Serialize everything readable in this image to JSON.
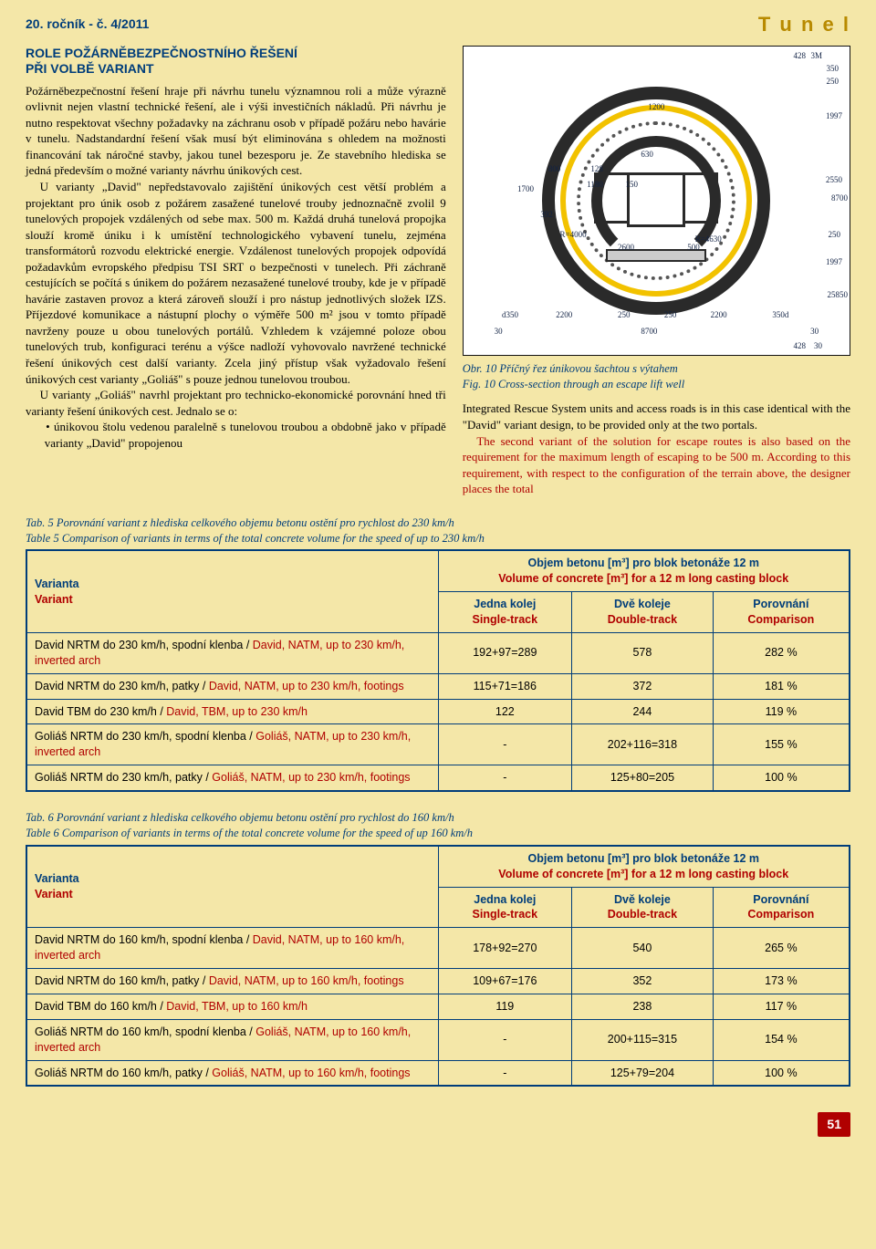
{
  "header": {
    "issue": "20. ročník - č. 4/2011",
    "logo": "T u n e l"
  },
  "article": {
    "title_line1": "ROLE POŽÁRNĚBEZPEČNOSTNÍHO ŘEŠENÍ",
    "title_line2": "PŘI VOLBĚ VARIANT",
    "p1": "Požárněbezpečnostní řešení hraje při návrhu tunelu významnou roli a může výrazně ovlivnit nejen vlastní technické řešení, ale i výši investičních nákladů. Při návrhu je nutno respektovat všechny požadavky na záchranu osob v případě požáru nebo havárie v tunelu. Nadstandardní řešení však musí být eliminována s ohledem na možnosti financování tak náročné stavby, jakou tunel bezesporu je. Ze stavebního hlediska se jedná především o možné varianty návrhu únikových cest.",
    "p2": "U varianty „David\" nepředstavovalo zajištění únikových cest větší problém a projektant pro únik osob z požárem zasažené tunelové trouby jednoznačně zvolil 9 tunelových propojek vzdálených od sebe max. 500 m. Každá druhá tunelová propojka slouží kromě úniku i k umístění technologického vybavení tunelu, zejména transformátorů rozvodu elektrické energie. Vzdálenost tunelových propojek odpovídá požadavkům evropského předpisu TSI SRT o bezpečnosti v tunelech. Při záchraně cestujících se počítá s únikem do požárem nezasažené tunelové trouby, kde je v případě havárie zastaven provoz a která zároveň slouží i pro nástup jednotlivých složek IZS. Příjezdové komunikace a nástupní plochy o výměře 500 m² jsou v tomto případě navrženy pouze u obou tunelových portálů. Vzhledem k vzájemné poloze obou tunelových trub, konfiguraci terénu a výšce nadloží vyhovovalo navržené technické řešení únikových cest další varianty. Zcela jiný přístup však vyžadovalo řešení únikových cest varianty „Goliáš\" s pouze jednou tunelovou troubou.",
    "p3": "U varianty „Goliáš\" navrhl projektant pro technicko-ekonomické porovnání hned tři varianty řešení únikových cest. Jednalo se o:",
    "b1": "únikovou štolu vedenou paralelně s tunelovou troubou a obdobně jako v případě varianty „David\" propojenou"
  },
  "figure": {
    "caption_cs": "Obr. 10 Příčný řez únikovou šachtou s výtahem",
    "caption_en": "Fig. 10 Cross-section through an escape lift well",
    "dims": {
      "d1": "428",
      "d2": "3M",
      "d3": "350",
      "d4": "250",
      "d5": "1997",
      "d6": "1200",
      "d7": "630",
      "d8": "800",
      "d9": "128",
      "d10": "1700",
      "d11": "1180",
      "d12": "150",
      "d13": "392",
      "d14": "2600",
      "d15": "500",
      "d16": "2550",
      "d17": "8700",
      "d18": "250",
      "d19": "1997",
      "d20": "d350",
      "d21": "2200",
      "d22": "250",
      "d23": "250",
      "d24": "2200",
      "d25": "350d",
      "d26": "30",
      "d27": "8700",
      "d28": "30",
      "d29": "R=4630",
      "d30": "R=4000",
      "d31": "25850",
      "d32": "30",
      "d33": "428"
    }
  },
  "right_text": {
    "p1a": "Integrated Rescue System units and access roads is in this case identical with the \"David\" variant design, to be provided only at the two portals.",
    "p2a": "The second variant of the solution for escape routes is also based on the requirement for the maximum length of escaping to be 500 m. According to this requirement, with respect to the configuration of the terrain above, the designer places the total"
  },
  "table5": {
    "caption_cs": "Tab. 5 Porovnání variant z hlediska celkového objemu betonu ostění pro rychlost do 230 km/h",
    "caption_en": "Table 5 Comparison of variants in terms of the total concrete volume for the speed of up to 230 km/h",
    "col_var_cs": "Varianta",
    "col_var_en": "Variant",
    "col_vol_cs": "Objem betonu [m³] pro blok betonáže 12 m",
    "col_vol_en": "Volume of concrete [m³] for a 12 m long casting block",
    "sub1_cs": "Jedna kolej",
    "sub1_en": "Single-track",
    "sub2_cs": "Dvě koleje",
    "sub2_en": "Double-track",
    "sub3_cs": "Porovnání",
    "sub3_en": "Comparison",
    "rows": [
      {
        "cs": "David NRTM do 230 km/h, spodní klenba / ",
        "en": "David, NATM, up to 230 km/h, inverted arch",
        "c1": "192+97=289",
        "c2": "578",
        "c3": "282 %"
      },
      {
        "cs": "David NRTM do 230 km/h, patky / ",
        "en": "David, NATM, up to 230 km/h, footings",
        "c1": "115+71=186",
        "c2": "372",
        "c3": "181 %"
      },
      {
        "cs": "David TBM do 230 km/h / ",
        "en": "David, TBM, up to 230 km/h",
        "c1": "122",
        "c2": "244",
        "c3": "119 %"
      },
      {
        "cs": "Goliáš NRTM do 230 km/h, spodní klenba / ",
        "en": "Goliáš, NATM, up to 230 km/h, inverted arch",
        "c1": "-",
        "c2": "202+116=318",
        "c3": "155 %"
      },
      {
        "cs": "Goliáš NRTM do 230 km/h, patky / ",
        "en": "Goliáš, NATM, up to 230 km/h, footings",
        "c1": "-",
        "c2": "125+80=205",
        "c3": "100 %"
      }
    ]
  },
  "table6": {
    "caption_cs": "Tab. 6 Porovnání variant z hlediska celkového objemu betonu ostění pro rychlost do 160 km/h",
    "caption_en": "Table 6 Comparison of variants in terms of the total concrete volume for the speed of up 160 km/h",
    "col_var_cs": "Varianta",
    "col_var_en": "Variant",
    "col_vol_cs": "Objem betonu [m³] pro blok betonáže 12 m",
    "col_vol_en": "Volume of concrete [m³] for a 12 m long casting block",
    "sub1_cs": "Jedna kolej",
    "sub1_en": "Single-track",
    "sub2_cs": "Dvě koleje",
    "sub2_en": "Double-track",
    "sub3_cs": "Porovnání",
    "sub3_en": "Comparison",
    "rows": [
      {
        "cs": "David NRTM do 160 km/h, spodní klenba / ",
        "en": "David, NATM, up to 160 km/h, inverted arch",
        "c1": "178+92=270",
        "c2": "540",
        "c3": "265 %"
      },
      {
        "cs": "David NRTM do 160 km/h, patky / ",
        "en": "David, NATM, up to 160 km/h, footings",
        "c1": "109+67=176",
        "c2": "352",
        "c3": "173 %"
      },
      {
        "cs": "David TBM do 160 km/h / ",
        "en": "David, TBM, up to 160 km/h",
        "c1": "119",
        "c2": "238",
        "c3": "117 %"
      },
      {
        "cs": "Goliáš NRTM do 160 km/h, spodní klenba / ",
        "en": "Goliáš, NATM, up to 160 km/h, inverted arch",
        "c1": "-",
        "c2": "200+115=315",
        "c3": "154 %"
      },
      {
        "cs": "Goliáš NRTM do 160 km/h, patky / ",
        "en": "Goliáš, NATM, up to 160 km/h, footings",
        "c1": "-",
        "c2": "125+79=204",
        "c3": "100 %"
      }
    ]
  },
  "page_number": "51"
}
